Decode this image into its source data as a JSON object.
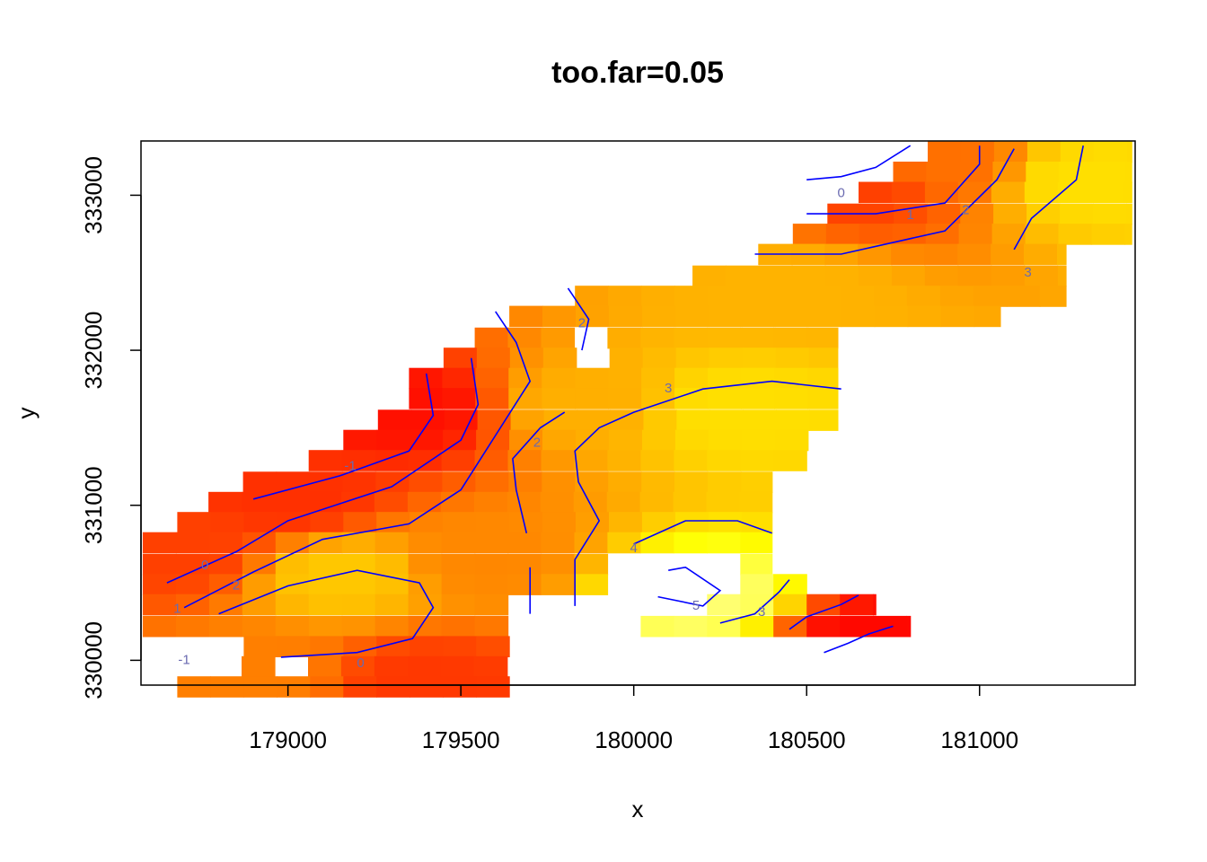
{
  "chart_data": {
    "type": "heatmap",
    "title": "too.far=0.05",
    "xlabel": "x",
    "ylabel": "y",
    "xlim": [
      178575,
      181450
    ],
    "ylim": [
      329840,
      333350
    ],
    "x_ticks": [
      179000,
      179500,
      180000,
      180500,
      181000
    ],
    "x_tick_labels": [
      "179000",
      "179500",
      "180000",
      "180500",
      "181000"
    ],
    "y_ticks": [
      330000,
      331000,
      332000,
      333000
    ],
    "y_tick_labels": [
      "330000",
      "331000",
      "332000",
      "333000"
    ],
    "grid": false,
    "legend": "none",
    "colors": {
      "low": "#ff0000",
      "high": "#ffff00",
      "highest": "#ffffcc",
      "contour": "#0000ff",
      "contour_label": "#6a6ab0"
    },
    "cell_size": {
      "dx": 96,
      "dy": 133
    },
    "row_extents": [
      {
        "y": 333280,
        "x0": 180850,
        "x1": 181440
      },
      {
        "y": 333150,
        "x0": 180750,
        "x1": 181440
      },
      {
        "y": 333020,
        "x0": 180650,
        "x1": 181440
      },
      {
        "y": 332880,
        "x0": 180560,
        "x1": 181440
      },
      {
        "y": 332750,
        "x0": 180460,
        "x1": 181440
      },
      {
        "y": 332620,
        "x0": 180360,
        "x1": 181250
      },
      {
        "y": 332480,
        "x0": 180170,
        "x1": 181250
      },
      {
        "y": 332350,
        "x0": 179830,
        "x1": 181250
      },
      {
        "y": 332220,
        "x0": 179640,
        "x1": 181060
      },
      {
        "y": 332080,
        "x0": 179540,
        "x1": 180590
      },
      {
        "y": 331950,
        "x0": 179450,
        "x1": 180590
      },
      {
        "y": 331820,
        "x0": 179350,
        "x1": 180590
      },
      {
        "y": 331690,
        "x0": 179350,
        "x1": 180590
      },
      {
        "y": 331550,
        "x0": 179260,
        "x1": 180590
      },
      {
        "y": 331420,
        "x0": 179160,
        "x1": 180590
      },
      {
        "y": 331290,
        "x0": 179060,
        "x1": 180590
      },
      {
        "y": 331150,
        "x0": 178870,
        "x1": 180400
      },
      {
        "y": 331020,
        "x0": 178770,
        "x1": 180400
      },
      {
        "y": 330890,
        "x0": 178680,
        "x1": 180400
      },
      {
        "y": 330760,
        "x0": 178580,
        "x1": 180400
      },
      {
        "y": 330620,
        "x0": 178580,
        "x1": 180400
      },
      {
        "y": 330490,
        "x0": 178580,
        "x1": 180500
      },
      {
        "y": 330360,
        "x0": 178580,
        "x1": 180700
      },
      {
        "y": 330220,
        "x0": 178580,
        "x1": 180800
      },
      {
        "y": 330090,
        "x0": 178680,
        "x1": 179700
      },
      {
        "y": 329960,
        "x0": 178770,
        "x1": 179700
      },
      {
        "y": 329830,
        "x0": 178680,
        "x1": 179700
      }
    ],
    "missing_regions": [
      {
        "x0": 179830,
        "x1": 179930,
        "y0": 331950,
        "y1": 332080
      },
      {
        "x0": 180460,
        "x1": 180620,
        "y0": 330890,
        "y1": 331420
      },
      {
        "x0": 179950,
        "x1": 180200,
        "y0": 330350,
        "y1": 330650
      },
      {
        "x0": 178580,
        "x1": 178900,
        "y0": 329900,
        "y1": 330180
      },
      {
        "x0": 178950,
        "x1": 179060,
        "y0": 329900,
        "y1": 330020
      },
      {
        "x0": 180050,
        "x1": 180260,
        "y0": 330470,
        "y1": 330640
      },
      {
        "x0": 179640,
        "x1": 180000,
        "y0": 330020,
        "y1": 330360
      },
      {
        "x0": 180850,
        "x1": 181440,
        "y0": 329830,
        "y1": 330420
      },
      {
        "x0": 179650,
        "x1": 179960,
        "y0": 329830,
        "y1": 330100
      }
    ],
    "value_field": {
      "z_range": [
        -2,
        6
      ],
      "anchors": [
        {
          "x": 179350,
          "y": 331620,
          "z": -1.6
        },
        {
          "x": 178700,
          "y": 330700,
          "z": -0.4
        },
        {
          "x": 179000,
          "y": 331050,
          "z": -0.8
        },
        {
          "x": 179150,
          "y": 330550,
          "z": 3.0
        },
        {
          "x": 179400,
          "y": 329850,
          "z": -0.6
        },
        {
          "x": 178900,
          "y": 329920,
          "z": 1.2
        },
        {
          "x": 179550,
          "y": 330650,
          "z": 1.4
        },
        {
          "x": 179850,
          "y": 331650,
          "z": 2.4
        },
        {
          "x": 180300,
          "y": 331600,
          "z": 3.6
        },
        {
          "x": 180200,
          "y": 330400,
          "z": 5.3
        },
        {
          "x": 180700,
          "y": 330150,
          "z": -1.8
        },
        {
          "x": 180450,
          "y": 332400,
          "z": 2.5
        },
        {
          "x": 180650,
          "y": 333050,
          "z": -0.4
        },
        {
          "x": 180900,
          "y": 333200,
          "z": 0.8
        },
        {
          "x": 181300,
          "y": 333100,
          "z": 3.6
        }
      ]
    },
    "contours": [
      {
        "level": "-1",
        "points": [
          [
            178900,
            331040
          ],
          [
            179150,
            331190
          ],
          [
            179350,
            331350
          ],
          [
            179420,
            331580
          ],
          [
            179400,
            331850
          ]
        ]
      },
      {
        "level": "0",
        "points": [
          [
            178650,
            330500
          ],
          [
            178850,
            330700
          ],
          [
            179000,
            330900
          ],
          [
            179300,
            331120
          ],
          [
            179500,
            331420
          ],
          [
            179550,
            331650
          ],
          [
            179530,
            331950
          ]
        ]
      },
      {
        "level": "1",
        "points": [
          [
            178700,
            330340
          ],
          [
            178900,
            330570
          ],
          [
            179100,
            330780
          ],
          [
            179350,
            330880
          ],
          [
            179500,
            331100
          ],
          [
            179600,
            331450
          ],
          [
            179700,
            331800
          ],
          [
            179660,
            332050
          ],
          [
            179600,
            332250
          ]
        ]
      },
      {
        "level": "2",
        "points": [
          [
            178800,
            330300
          ],
          [
            179000,
            330480
          ],
          [
            179200,
            330580
          ],
          [
            179380,
            330500
          ],
          [
            179420,
            330340
          ],
          [
            179360,
            330140
          ],
          [
            179200,
            330050
          ],
          [
            178980,
            330020
          ]
        ]
      },
      {
        "level": "2",
        "points": [
          [
            179700,
            330300
          ],
          [
            179700,
            330600
          ]
        ]
      },
      {
        "level": "2",
        "points": [
          [
            179690,
            330820
          ],
          [
            179660,
            331100
          ],
          [
            179650,
            331300
          ],
          [
            179730,
            331500
          ],
          [
            179800,
            331600
          ]
        ]
      },
      {
        "level": "2",
        "points": [
          [
            179850,
            332000
          ],
          [
            179870,
            332200
          ],
          [
            179810,
            332400
          ]
        ]
      },
      {
        "level": "3",
        "points": [
          [
            179830,
            330350
          ],
          [
            179830,
            330650
          ],
          [
            179900,
            330900
          ],
          [
            179840,
            331150
          ],
          [
            179830,
            331350
          ],
          [
            179900,
            331500
          ],
          [
            180000,
            331600
          ],
          [
            180200,
            331750
          ],
          [
            180400,
            331800
          ],
          [
            180600,
            331750
          ]
        ]
      },
      {
        "level": "4",
        "points": [
          [
            180000,
            330750
          ],
          [
            180150,
            330900
          ],
          [
            180300,
            330900
          ],
          [
            180400,
            330820
          ]
        ]
      },
      {
        "level": "5",
        "points": [
          [
            180070,
            330410
          ],
          [
            180200,
            330350
          ],
          [
            180250,
            330450
          ],
          [
            180150,
            330600
          ],
          [
            180100,
            330580
          ]
        ]
      },
      {
        "level": "3",
        "points": [
          [
            180250,
            330240
          ],
          [
            180350,
            330300
          ],
          [
            180420,
            330440
          ],
          [
            180450,
            330520
          ]
        ]
      },
      {
        "level": "-1",
        "points": [
          [
            180450,
            330200
          ],
          [
            180500,
            330280
          ],
          [
            180600,
            330360
          ],
          [
            180650,
            330420
          ]
        ]
      },
      {
        "level": "-1",
        "points": [
          [
            180550,
            330050
          ],
          [
            180620,
            330110
          ],
          [
            180680,
            330170
          ],
          [
            180750,
            330220
          ]
        ]
      },
      {
        "level": "0",
        "points": [
          [
            180500,
            333100
          ],
          [
            180600,
            333120
          ],
          [
            180700,
            333180
          ],
          [
            180800,
            333320
          ]
        ]
      },
      {
        "level": "1",
        "points": [
          [
            180500,
            332880
          ],
          [
            180700,
            332880
          ],
          [
            180900,
            332950
          ],
          [
            181000,
            333200
          ],
          [
            181000,
            333320
          ]
        ]
      },
      {
        "level": "2",
        "points": [
          [
            180350,
            332620
          ],
          [
            180600,
            332620
          ],
          [
            180900,
            332770
          ],
          [
            181050,
            333100
          ],
          [
            181100,
            333300
          ]
        ]
      },
      {
        "level": "3",
        "points": [
          [
            181100,
            332650
          ],
          [
            181150,
            332850
          ],
          [
            181280,
            333100
          ],
          [
            181300,
            333320
          ]
        ]
      }
    ],
    "contour_labels": [
      {
        "text": "-1",
        "x": 179180,
        "y": 331250
      },
      {
        "text": "0",
        "x": 178760,
        "y": 330610
      },
      {
        "text": "1",
        "x": 178680,
        "y": 330330
      },
      {
        "text": "2",
        "x": 178850,
        "y": 330480
      },
      {
        "text": "-1",
        "x": 178700,
        "y": 330000
      },
      {
        "text": "0",
        "x": 179210,
        "y": 329980
      },
      {
        "text": "2",
        "x": 179720,
        "y": 331400
      },
      {
        "text": "2",
        "x": 179850,
        "y": 332170
      },
      {
        "text": "3",
        "x": 180100,
        "y": 331750
      },
      {
        "text": "4",
        "x": 180000,
        "y": 330720
      },
      {
        "text": "5",
        "x": 180180,
        "y": 330350
      },
      {
        "text": "3",
        "x": 180370,
        "y": 330310
      },
      {
        "text": "0",
        "x": 180600,
        "y": 333010
      },
      {
        "text": "1",
        "x": 180800,
        "y": 332870
      },
      {
        "text": "2",
        "x": 180960,
        "y": 332900
      },
      {
        "text": "3",
        "x": 181140,
        "y": 332500
      }
    ]
  }
}
